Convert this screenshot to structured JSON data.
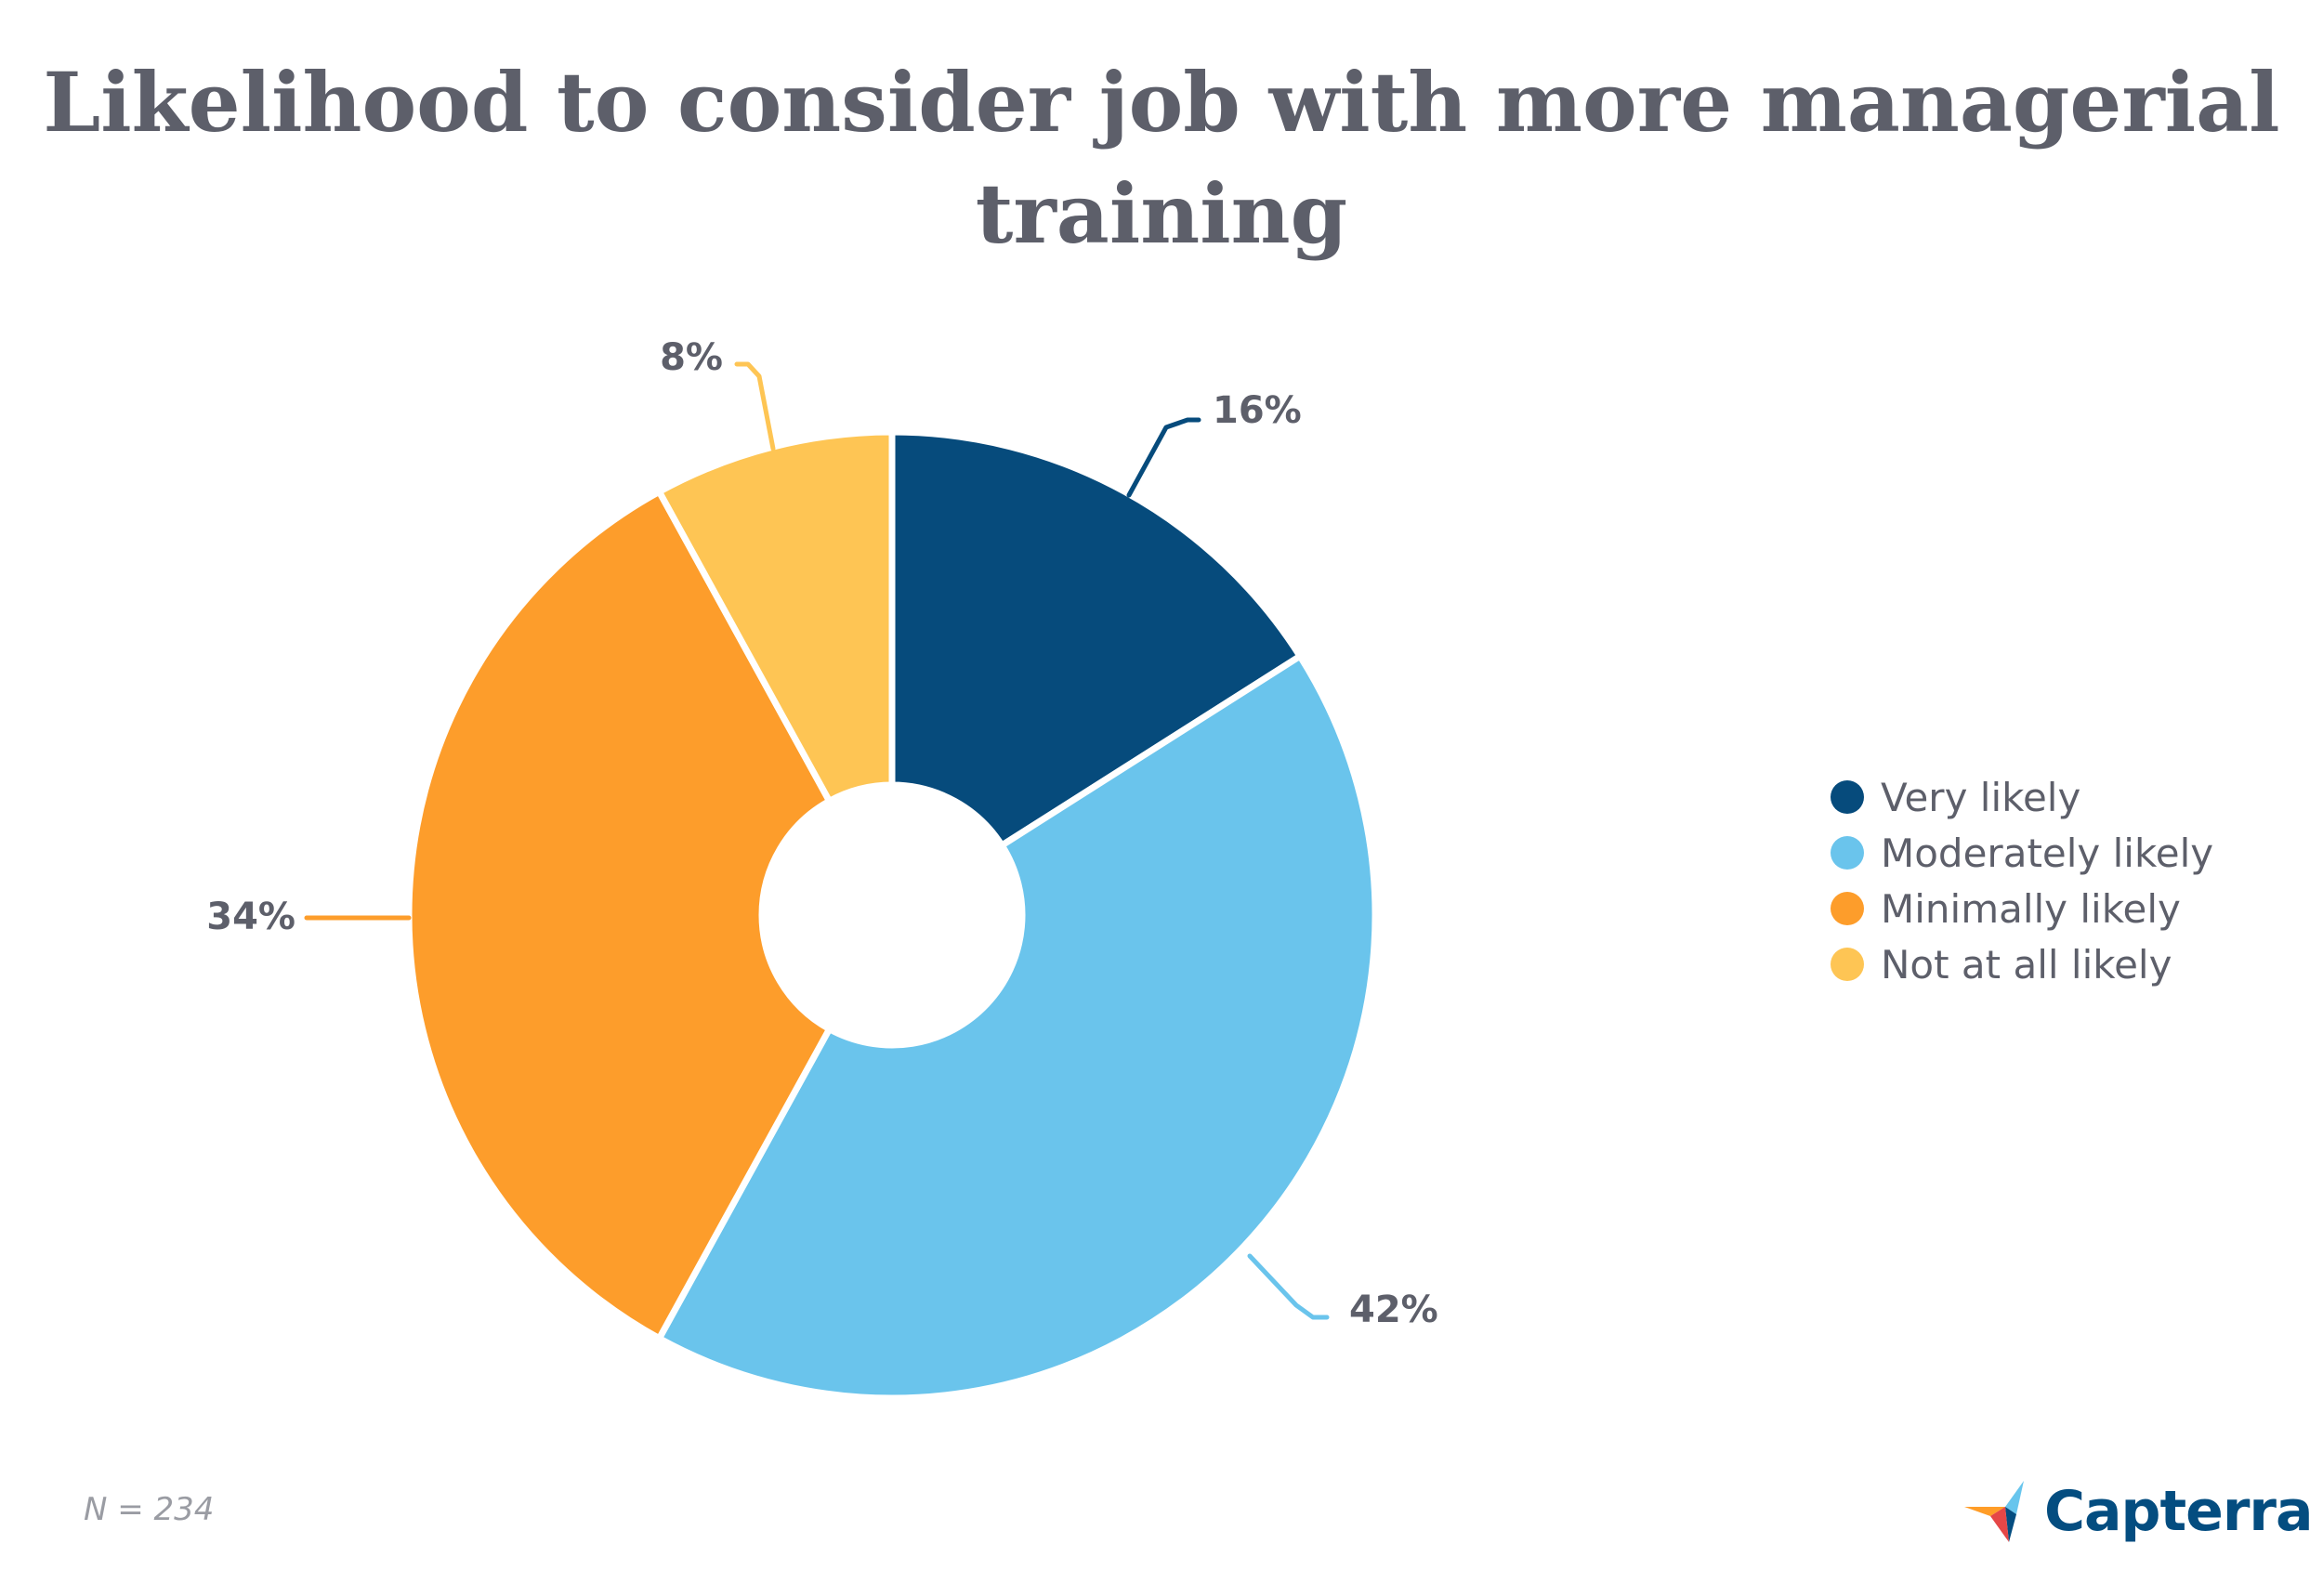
{
  "chart_data": {
    "type": "pie",
    "title": "Likelihood to consider job with more managerial training",
    "categories": [
      "Very likely",
      "Moderately likely",
      "Minimally likely",
      "Not at all likely"
    ],
    "values": [
      16,
      42,
      34,
      8
    ],
    "value_labels": [
      "16%",
      "42%",
      "34%",
      "8%"
    ],
    "colors": [
      "#064b7c",
      "#6ac4ec",
      "#fd9d2b",
      "#fec554"
    ],
    "donut": true,
    "legend": "right",
    "legend_entries": [
      "Very likely",
      "Moderately likely",
      "Minimally likely",
      "Not at all likely"
    ]
  },
  "footnote": "N = 234",
  "brand": {
    "name": "Capterra",
    "logo_icon": "capterra-logo-icon",
    "logo_colors": [
      "#ff9d28",
      "#68c5ed",
      "#044d80",
      "#e54747"
    ]
  }
}
